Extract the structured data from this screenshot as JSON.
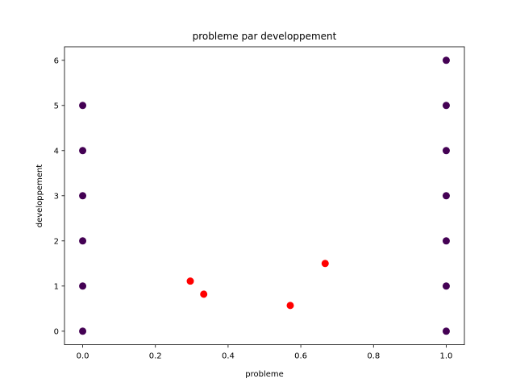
{
  "chart_data": {
    "type": "scatter",
    "title": "probleme par developpement",
    "xlabel": "probleme",
    "ylabel": "developpement",
    "xlim": [
      -0.05,
      1.05
    ],
    "ylim": [
      -0.3,
      6.3
    ],
    "xticks": [
      0.0,
      0.2,
      0.4,
      0.6,
      0.8,
      1.0
    ],
    "xtick_labels": [
      "0.0",
      "0.2",
      "0.4",
      "0.6",
      "0.8",
      "1.0"
    ],
    "yticks": [
      0,
      1,
      2,
      3,
      4,
      5,
      6
    ],
    "ytick_labels": [
      "0",
      "1",
      "2",
      "3",
      "4",
      "5",
      "6"
    ],
    "grid": false,
    "legend": false,
    "series": [
      {
        "color": "#440154",
        "points": [
          [
            0,
            0
          ],
          [
            0,
            1
          ],
          [
            0,
            2
          ],
          [
            0,
            3
          ],
          [
            0,
            4
          ],
          [
            0,
            5
          ],
          [
            1,
            0
          ],
          [
            1,
            1
          ],
          [
            1,
            2
          ],
          [
            1,
            3
          ],
          [
            1,
            4
          ],
          [
            1,
            5
          ],
          [
            1,
            6
          ]
        ]
      },
      {
        "color": "#ff0000",
        "points": [
          [
            0.296,
            1.11
          ],
          [
            0.333,
            0.82
          ],
          [
            0.571,
            0.57
          ],
          [
            0.667,
            1.5
          ]
        ]
      }
    ]
  }
}
